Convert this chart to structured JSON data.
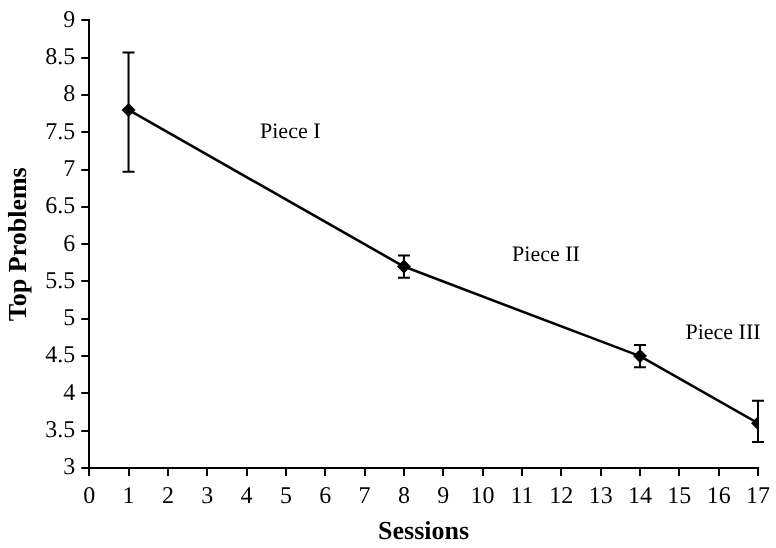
{
  "chart_data": {
    "type": "line",
    "xlabel": "Sessions",
    "ylabel": "Top Problems",
    "x": [
      1,
      8,
      14,
      17
    ],
    "values": [
      7.8,
      5.7,
      4.5,
      3.6
    ],
    "errors": [
      [
        6.97,
        8.57
      ],
      0.15,
      0.15,
      [
        3.35,
        3.9
      ]
    ],
    "color": "#000000",
    "marker": "diamond",
    "line_style": "solid",
    "xlim": [
      0,
      17
    ],
    "xticks": [
      0,
      1,
      2,
      3,
      4,
      5,
      6,
      7,
      8,
      9,
      10,
      11,
      12,
      13,
      14,
      15,
      16,
      17
    ],
    "ylim": [
      3,
      9
    ],
    "yticks": [
      3,
      3.5,
      4,
      4.5,
      5,
      5.5,
      6,
      6.5,
      7,
      7.5,
      8,
      8.5,
      9
    ],
    "annotations": [
      "Piece I",
      "Piece II",
      "Piece III"
    ]
  }
}
